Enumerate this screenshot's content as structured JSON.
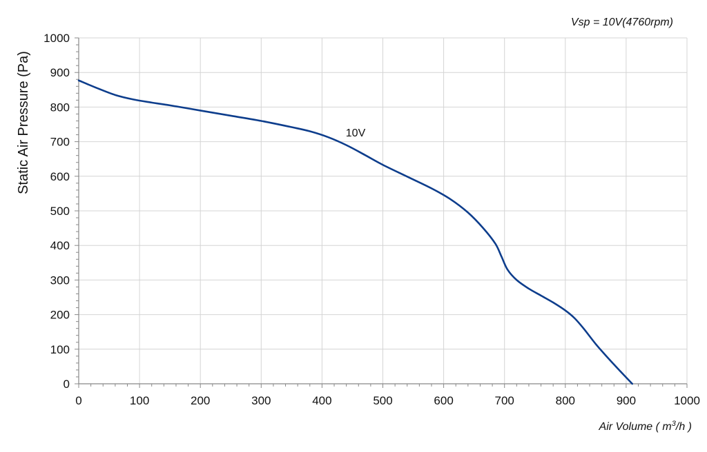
{
  "chart_data": {
    "type": "line",
    "title": "Vsp = 10V(4760rpm)",
    "xlabel_prefix": "Air Volume ( m",
    "xlabel_sup": "3",
    "xlabel_suffix": "/h )",
    "ylabel": "Static Air Pressure  (Pa)",
    "xlim": [
      0,
      1000
    ],
    "ylim": [
      0,
      1000
    ],
    "xticks": [
      0,
      100,
      200,
      300,
      400,
      500,
      600,
      700,
      800,
      900,
      1000
    ],
    "yticks": [
      0,
      100,
      200,
      300,
      400,
      500,
      600,
      700,
      800,
      900,
      1000
    ],
    "grid": true,
    "colors": {
      "line": "#0d3d8c",
      "grid": "#d4d4d4",
      "axis": "#888888"
    },
    "series": [
      {
        "name": "10V",
        "x": [
          0,
          30,
          60,
          90,
          120,
          150,
          200,
          250,
          300,
          350,
          380,
          410,
          440,
          470,
          500,
          540,
          580,
          610,
          640,
          665,
          685,
          695,
          705,
          720,
          740,
          760,
          780,
          800,
          815,
          830,
          850,
          870,
          890,
          910
        ],
        "y": [
          877,
          855,
          835,
          822,
          813,
          805,
          790,
          775,
          760,
          742,
          730,
          713,
          690,
          662,
          633,
          599,
          565,
          535,
          495,
          450,
          405,
          368,
          330,
          300,
          275,
          255,
          235,
          212,
          190,
          160,
          115,
          75,
          37,
          0
        ]
      }
    ]
  }
}
